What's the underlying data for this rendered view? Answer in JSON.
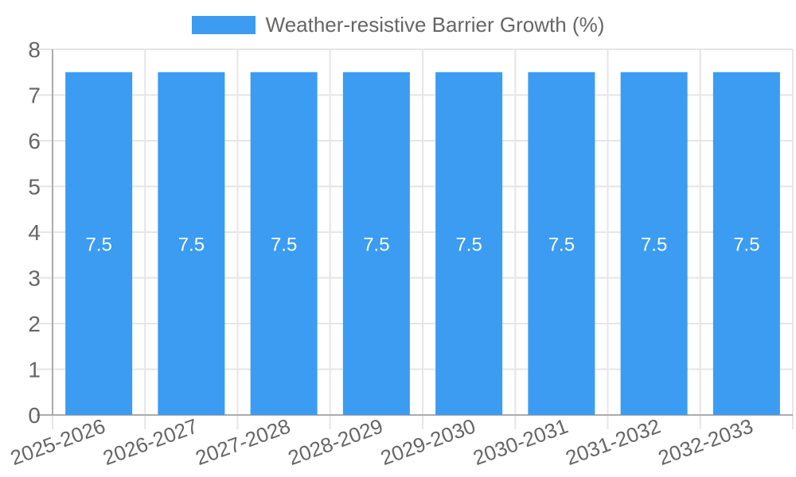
{
  "chart_data": {
    "type": "bar",
    "title": "Weather-resistive Barrier Growth (%)",
    "legend": {
      "label": "Weather-resistive Barrier Growth (%)",
      "position": "top"
    },
    "categories": [
      "2025-2026",
      "2026-2027",
      "2027-2028",
      "2028-2029",
      "2029-2030",
      "2030-2031",
      "2031-2032",
      "2032-2033"
    ],
    "values": [
      7.5,
      7.5,
      7.5,
      7.5,
      7.5,
      7.5,
      7.5,
      7.5
    ],
    "bar_value_labels": [
      "7.5",
      "7.5",
      "7.5",
      "7.5",
      "7.5",
      "7.5",
      "7.5",
      "7.5"
    ],
    "xlabel": "",
    "ylabel": "",
    "ylim": [
      0,
      8
    ],
    "yticks": [
      0,
      1,
      2,
      3,
      4,
      5,
      6,
      7,
      8
    ],
    "grid": true,
    "colors": {
      "bar": "#3b9cf2",
      "tick_text": "#666666",
      "grid": "#e6e6e6",
      "axis": "#ababab",
      "bar_label_text": "#ffffff",
      "background": "#ffffff"
    }
  }
}
